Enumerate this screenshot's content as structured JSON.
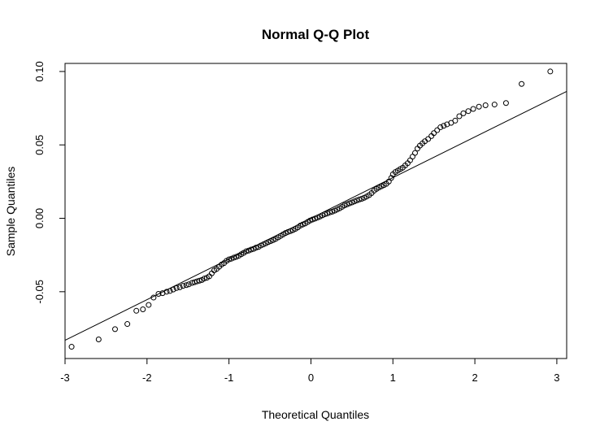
{
  "chart_data": {
    "type": "scatter",
    "title": "Normal Q-Q Plot",
    "xlabel": "Theoretical Quantiles",
    "ylabel": "Sample Quantiles",
    "xlim": [
      -3.0,
      3.12
    ],
    "ylim": [
      -0.0955,
      0.1055
    ],
    "x_ticks": [
      -3,
      -2,
      -1,
      0,
      1,
      2,
      3
    ],
    "x_tick_labels": [
      "-3",
      "-2",
      "-1",
      "0",
      "1",
      "2",
      "3"
    ],
    "y_ticks": [
      -0.05,
      0,
      0.05,
      0.1
    ],
    "y_tick_labels": [
      "-0.05",
      "0.00",
      "0.05",
      "0.10"
    ],
    "grid": false,
    "legend": "none",
    "reference_line": {
      "intercept": 0.0,
      "slope": 0.0277
    },
    "points": [
      [
        -2.92,
        -0.0875
      ],
      [
        -2.59,
        -0.0825
      ],
      [
        -2.39,
        -0.0755
      ],
      [
        -2.24,
        -0.072
      ],
      [
        -2.13,
        -0.063
      ],
      [
        -2.05,
        -0.062
      ],
      [
        -1.98,
        -0.059
      ],
      [
        -1.92,
        -0.054
      ],
      [
        -1.86,
        -0.0515
      ],
      [
        -1.81,
        -0.051
      ],
      [
        -1.76,
        -0.05
      ],
      [
        -1.72,
        -0.0495
      ],
      [
        -1.68,
        -0.0485
      ],
      [
        -1.64,
        -0.0475
      ],
      [
        -1.6,
        -0.047
      ],
      [
        -1.56,
        -0.046
      ],
      [
        -1.52,
        -0.0455
      ],
      [
        -1.49,
        -0.045
      ],
      [
        -1.45,
        -0.044
      ],
      [
        -1.42,
        -0.0435
      ],
      [
        -1.39,
        -0.043
      ],
      [
        -1.36,
        -0.0425
      ],
      [
        -1.33,
        -0.042
      ],
      [
        -1.3,
        -0.041
      ],
      [
        -1.27,
        -0.0405
      ],
      [
        -1.24,
        -0.0395
      ],
      [
        -1.21,
        -0.0375
      ],
      [
        -1.18,
        -0.0355
      ],
      [
        -1.15,
        -0.0345
      ],
      [
        -1.12,
        -0.033
      ],
      [
        -1.09,
        -0.0315
      ],
      [
        -1.06,
        -0.0305
      ],
      [
        -1.03,
        -0.029
      ],
      [
        -1.0,
        -0.028
      ],
      [
        -0.97,
        -0.0275
      ],
      [
        -0.94,
        -0.0268
      ],
      [
        -0.91,
        -0.0262
      ],
      [
        -0.88,
        -0.0255
      ],
      [
        -0.85,
        -0.0245
      ],
      [
        -0.82,
        -0.0235
      ],
      [
        -0.79,
        -0.0225
      ],
      [
        -0.76,
        -0.022
      ],
      [
        -0.73,
        -0.0213
      ],
      [
        -0.7,
        -0.0208
      ],
      [
        -0.67,
        -0.02
      ],
      [
        -0.64,
        -0.0195
      ],
      [
        -0.61,
        -0.0185
      ],
      [
        -0.58,
        -0.0178
      ],
      [
        -0.55,
        -0.017
      ],
      [
        -0.52,
        -0.0162
      ],
      [
        -0.49,
        -0.0155
      ],
      [
        -0.46,
        -0.0148
      ],
      [
        -0.43,
        -0.014
      ],
      [
        -0.4,
        -0.013
      ],
      [
        -0.37,
        -0.012
      ],
      [
        -0.34,
        -0.011
      ],
      [
        -0.31,
        -0.01
      ],
      [
        -0.28,
        -0.0093
      ],
      [
        -0.25,
        -0.0087
      ],
      [
        -0.22,
        -0.008
      ],
      [
        -0.19,
        -0.0072
      ],
      [
        -0.16,
        -0.0062
      ],
      [
        -0.13,
        -0.005
      ],
      [
        -0.1,
        -0.0042
      ],
      [
        -0.07,
        -0.0035
      ],
      [
        -0.04,
        -0.0025
      ],
      [
        -0.01,
        -0.0015
      ],
      [
        0.02,
        -0.0008
      ],
      [
        0.05,
        -0.0002
      ],
      [
        0.08,
        0.0005
      ],
      [
        0.11,
        0.0012
      ],
      [
        0.14,
        0.002
      ],
      [
        0.17,
        0.0028
      ],
      [
        0.2,
        0.0033
      ],
      [
        0.23,
        0.004
      ],
      [
        0.26,
        0.0045
      ],
      [
        0.29,
        0.0052
      ],
      [
        0.32,
        0.006
      ],
      [
        0.35,
        0.0068
      ],
      [
        0.38,
        0.0078
      ],
      [
        0.41,
        0.0088
      ],
      [
        0.44,
        0.0095
      ],
      [
        0.47,
        0.0102
      ],
      [
        0.5,
        0.0108
      ],
      [
        0.53,
        0.0115
      ],
      [
        0.56,
        0.0122
      ],
      [
        0.59,
        0.0128
      ],
      [
        0.62,
        0.0133
      ],
      [
        0.65,
        0.014
      ],
      [
        0.68,
        0.0148
      ],
      [
        0.71,
        0.0158
      ],
      [
        0.74,
        0.0172
      ],
      [
        0.77,
        0.0188
      ],
      [
        0.8,
        0.02
      ],
      [
        0.83,
        0.021
      ],
      [
        0.86,
        0.0218
      ],
      [
        0.89,
        0.0226
      ],
      [
        0.92,
        0.0235
      ],
      [
        0.95,
        0.025
      ],
      [
        0.98,
        0.0275
      ],
      [
        1.0,
        0.03
      ],
      [
        1.03,
        0.0315
      ],
      [
        1.06,
        0.0325
      ],
      [
        1.09,
        0.0335
      ],
      [
        1.12,
        0.0345
      ],
      [
        1.15,
        0.036
      ],
      [
        1.18,
        0.0375
      ],
      [
        1.21,
        0.0395
      ],
      [
        1.24,
        0.042
      ],
      [
        1.27,
        0.0445
      ],
      [
        1.3,
        0.0475
      ],
      [
        1.33,
        0.0495
      ],
      [
        1.36,
        0.051
      ],
      [
        1.39,
        0.0525
      ],
      [
        1.43,
        0.054
      ],
      [
        1.47,
        0.056
      ],
      [
        1.5,
        0.058
      ],
      [
        1.54,
        0.06
      ],
      [
        1.58,
        0.062
      ],
      [
        1.62,
        0.063
      ],
      [
        1.66,
        0.064
      ],
      [
        1.71,
        0.065
      ],
      [
        1.76,
        0.0665
      ],
      [
        1.81,
        0.0695
      ],
      [
        1.86,
        0.0715
      ],
      [
        1.92,
        0.073
      ],
      [
        1.98,
        0.0745
      ],
      [
        2.05,
        0.076
      ],
      [
        2.13,
        0.077
      ],
      [
        2.24,
        0.0775
      ],
      [
        2.38,
        0.0785
      ],
      [
        2.57,
        0.0915
      ],
      [
        2.92,
        0.1
      ]
    ]
  }
}
